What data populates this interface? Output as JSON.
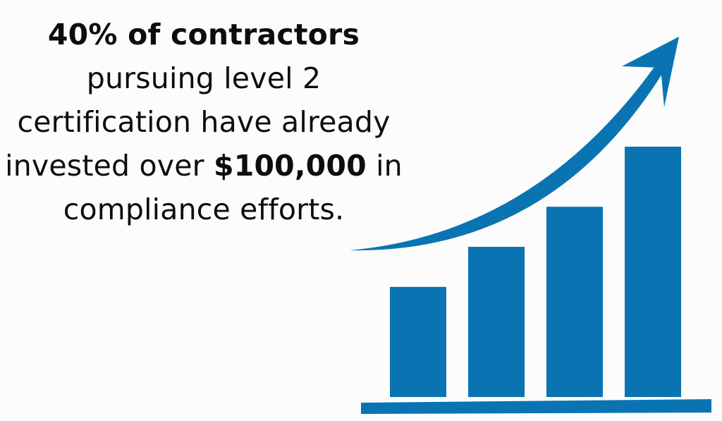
{
  "statement": {
    "headline": "40% of contractors",
    "line2": "pursuing level 2",
    "line3": "certification have already",
    "line4_before": "invested over ",
    "amount": "$100,000",
    "line4_after": " in",
    "line5": "compliance efforts."
  },
  "graphic": {
    "type": "rising bar chart with upward arrow",
    "bar_levels": [
      0.44,
      0.6,
      0.76,
      1.0
    ],
    "color": "#0a74b3"
  }
}
